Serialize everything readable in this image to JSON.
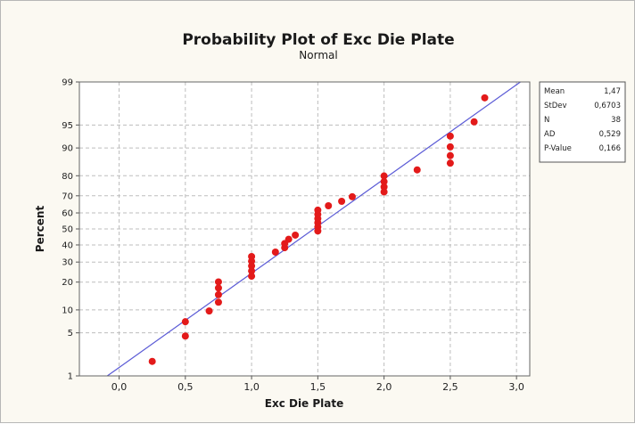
{
  "chart_data": {
    "type": "scatter",
    "title": "Probability Plot of Exc Die Plate",
    "subtitle": "Normal",
    "xlabel": "Exc Die Plate",
    "ylabel": "Percent",
    "xlim": [
      -0.3,
      3.1
    ],
    "x_ticks": [
      0.0,
      0.5,
      1.0,
      1.5,
      2.0,
      2.5,
      3.0
    ],
    "x_tick_labels": [
      "0,0",
      "0,5",
      "1,0",
      "1,5",
      "2,0",
      "2,5",
      "3,0"
    ],
    "y_scale": "normal-probability",
    "ylim": [
      1,
      99
    ],
    "y_ticks": [
      1,
      5,
      10,
      20,
      30,
      40,
      50,
      60,
      70,
      80,
      90,
      95,
      99
    ],
    "grid": true,
    "fit_line": {
      "mean": 1.47,
      "stdev": 0.6703
    },
    "colors": {
      "points": "#e31a1a",
      "fit_line": "#5b5bd6",
      "grid": "#bdbdbd"
    },
    "points": [
      {
        "x": 0.25,
        "y": 1.8
      },
      {
        "x": 0.5,
        "y": 4.5
      },
      {
        "x": 0.5,
        "y": 7.1
      },
      {
        "x": 0.68,
        "y": 9.7
      },
      {
        "x": 0.75,
        "y": 12.3
      },
      {
        "x": 0.75,
        "y": 14.9
      },
      {
        "x": 0.75,
        "y": 17.5
      },
      {
        "x": 0.75,
        "y": 20.1
      },
      {
        "x": 1.0,
        "y": 22.7
      },
      {
        "x": 1.0,
        "y": 25.3
      },
      {
        "x": 1.0,
        "y": 27.9
      },
      {
        "x": 1.0,
        "y": 30.5
      },
      {
        "x": 1.0,
        "y": 33.1
      },
      {
        "x": 1.18,
        "y": 35.7
      },
      {
        "x": 1.25,
        "y": 38.3
      },
      {
        "x": 1.25,
        "y": 40.9
      },
      {
        "x": 1.28,
        "y": 43.5
      },
      {
        "x": 1.33,
        "y": 46.1
      },
      {
        "x": 1.5,
        "y": 48.7
      },
      {
        "x": 1.5,
        "y": 51.3
      },
      {
        "x": 1.5,
        "y": 53.9
      },
      {
        "x": 1.5,
        "y": 56.5
      },
      {
        "x": 1.5,
        "y": 59.1
      },
      {
        "x": 1.5,
        "y": 61.7
      },
      {
        "x": 1.58,
        "y": 64.3
      },
      {
        "x": 1.68,
        "y": 66.9
      },
      {
        "x": 1.76,
        "y": 69.5
      },
      {
        "x": 2.0,
        "y": 72.1
      },
      {
        "x": 2.0,
        "y": 74.7
      },
      {
        "x": 2.0,
        "y": 77.3
      },
      {
        "x": 2.0,
        "y": 79.9
      },
      {
        "x": 2.25,
        "y": 82.5
      },
      {
        "x": 2.5,
        "y": 85.1
      },
      {
        "x": 2.5,
        "y": 87.7
      },
      {
        "x": 2.5,
        "y": 90.3
      },
      {
        "x": 2.5,
        "y": 92.9
      },
      {
        "x": 2.68,
        "y": 95.5
      },
      {
        "x": 2.76,
        "y": 98.1
      }
    ],
    "stats_box": [
      {
        "label": "Mean",
        "value": "1,47"
      },
      {
        "label": "StDev",
        "value": "0,6703"
      },
      {
        "label": "N",
        "value": "38"
      },
      {
        "label": "AD",
        "value": "0,529"
      },
      {
        "label": "P-Value",
        "value": "0,166"
      }
    ]
  }
}
